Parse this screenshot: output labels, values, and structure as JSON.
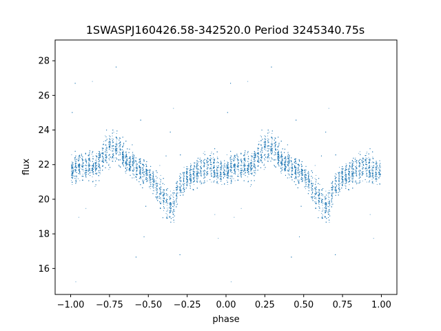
{
  "chart_data": {
    "type": "scatter",
    "title": "1SWASPJ160426.58-342520.0 Period 3245340.75s",
    "xlabel": "phase",
    "ylabel": "flux",
    "xlim": [
      -1.1,
      1.1
    ],
    "ylim": [
      14.5,
      29.2
    ],
    "xticks": [
      -1.0,
      -0.75,
      -0.5,
      -0.25,
      0.0,
      0.25,
      0.5,
      0.75,
      1.0
    ],
    "xtick_labels": [
      "−1.00",
      "−0.75",
      "−0.50",
      "−0.25",
      "0.00",
      "0.25",
      "0.50",
      "0.75",
      "1.00"
    ],
    "yticks": [
      16,
      18,
      20,
      22,
      24,
      26,
      28
    ],
    "ytick_labels": [
      "16",
      "18",
      "20",
      "22",
      "24",
      "26",
      "28"
    ],
    "grid": false,
    "marker_color": "#1f77b4",
    "phase_profile": [
      {
        "phase": 0.0,
        "flux": 21.6,
        "spread": 0.9
      },
      {
        "phase": 0.05,
        "flux": 21.9,
        "spread": 1.0
      },
      {
        "phase": 0.1,
        "flux": 22.0,
        "spread": 0.9
      },
      {
        "phase": 0.15,
        "flux": 21.8,
        "spread": 1.0
      },
      {
        "phase": 0.2,
        "flux": 22.4,
        "spread": 1.1
      },
      {
        "phase": 0.25,
        "flux": 22.9,
        "spread": 1.2
      },
      {
        "phase": 0.3,
        "flux": 23.0,
        "spread": 1.1
      },
      {
        "phase": 0.35,
        "flux": 22.3,
        "spread": 1.0
      },
      {
        "phase": 0.4,
        "flux": 22.0,
        "spread": 0.9
      },
      {
        "phase": 0.45,
        "flux": 21.7,
        "spread": 0.9
      },
      {
        "phase": 0.5,
        "flux": 21.4,
        "spread": 0.9
      },
      {
        "phase": 0.55,
        "flux": 20.8,
        "spread": 1.0
      },
      {
        "phase": 0.6,
        "flux": 20.2,
        "spread": 1.1
      },
      {
        "phase": 0.65,
        "flux": 19.3,
        "spread": 1.2
      },
      {
        "phase": 0.7,
        "flux": 20.8,
        "spread": 1.0
      },
      {
        "phase": 0.75,
        "flux": 21.3,
        "spread": 0.9
      },
      {
        "phase": 0.8,
        "flux": 21.5,
        "spread": 1.0
      },
      {
        "phase": 0.85,
        "flux": 21.8,
        "spread": 1.0
      },
      {
        "phase": 0.9,
        "flux": 21.9,
        "spread": 1.1
      },
      {
        "phase": 0.95,
        "flux": 21.6,
        "spread": 1.0
      },
      {
        "phase": 1.0,
        "flux": 21.6,
        "spread": 0.9
      }
    ],
    "note_repeat": "pattern repeats with period 1.0 in phase"
  }
}
